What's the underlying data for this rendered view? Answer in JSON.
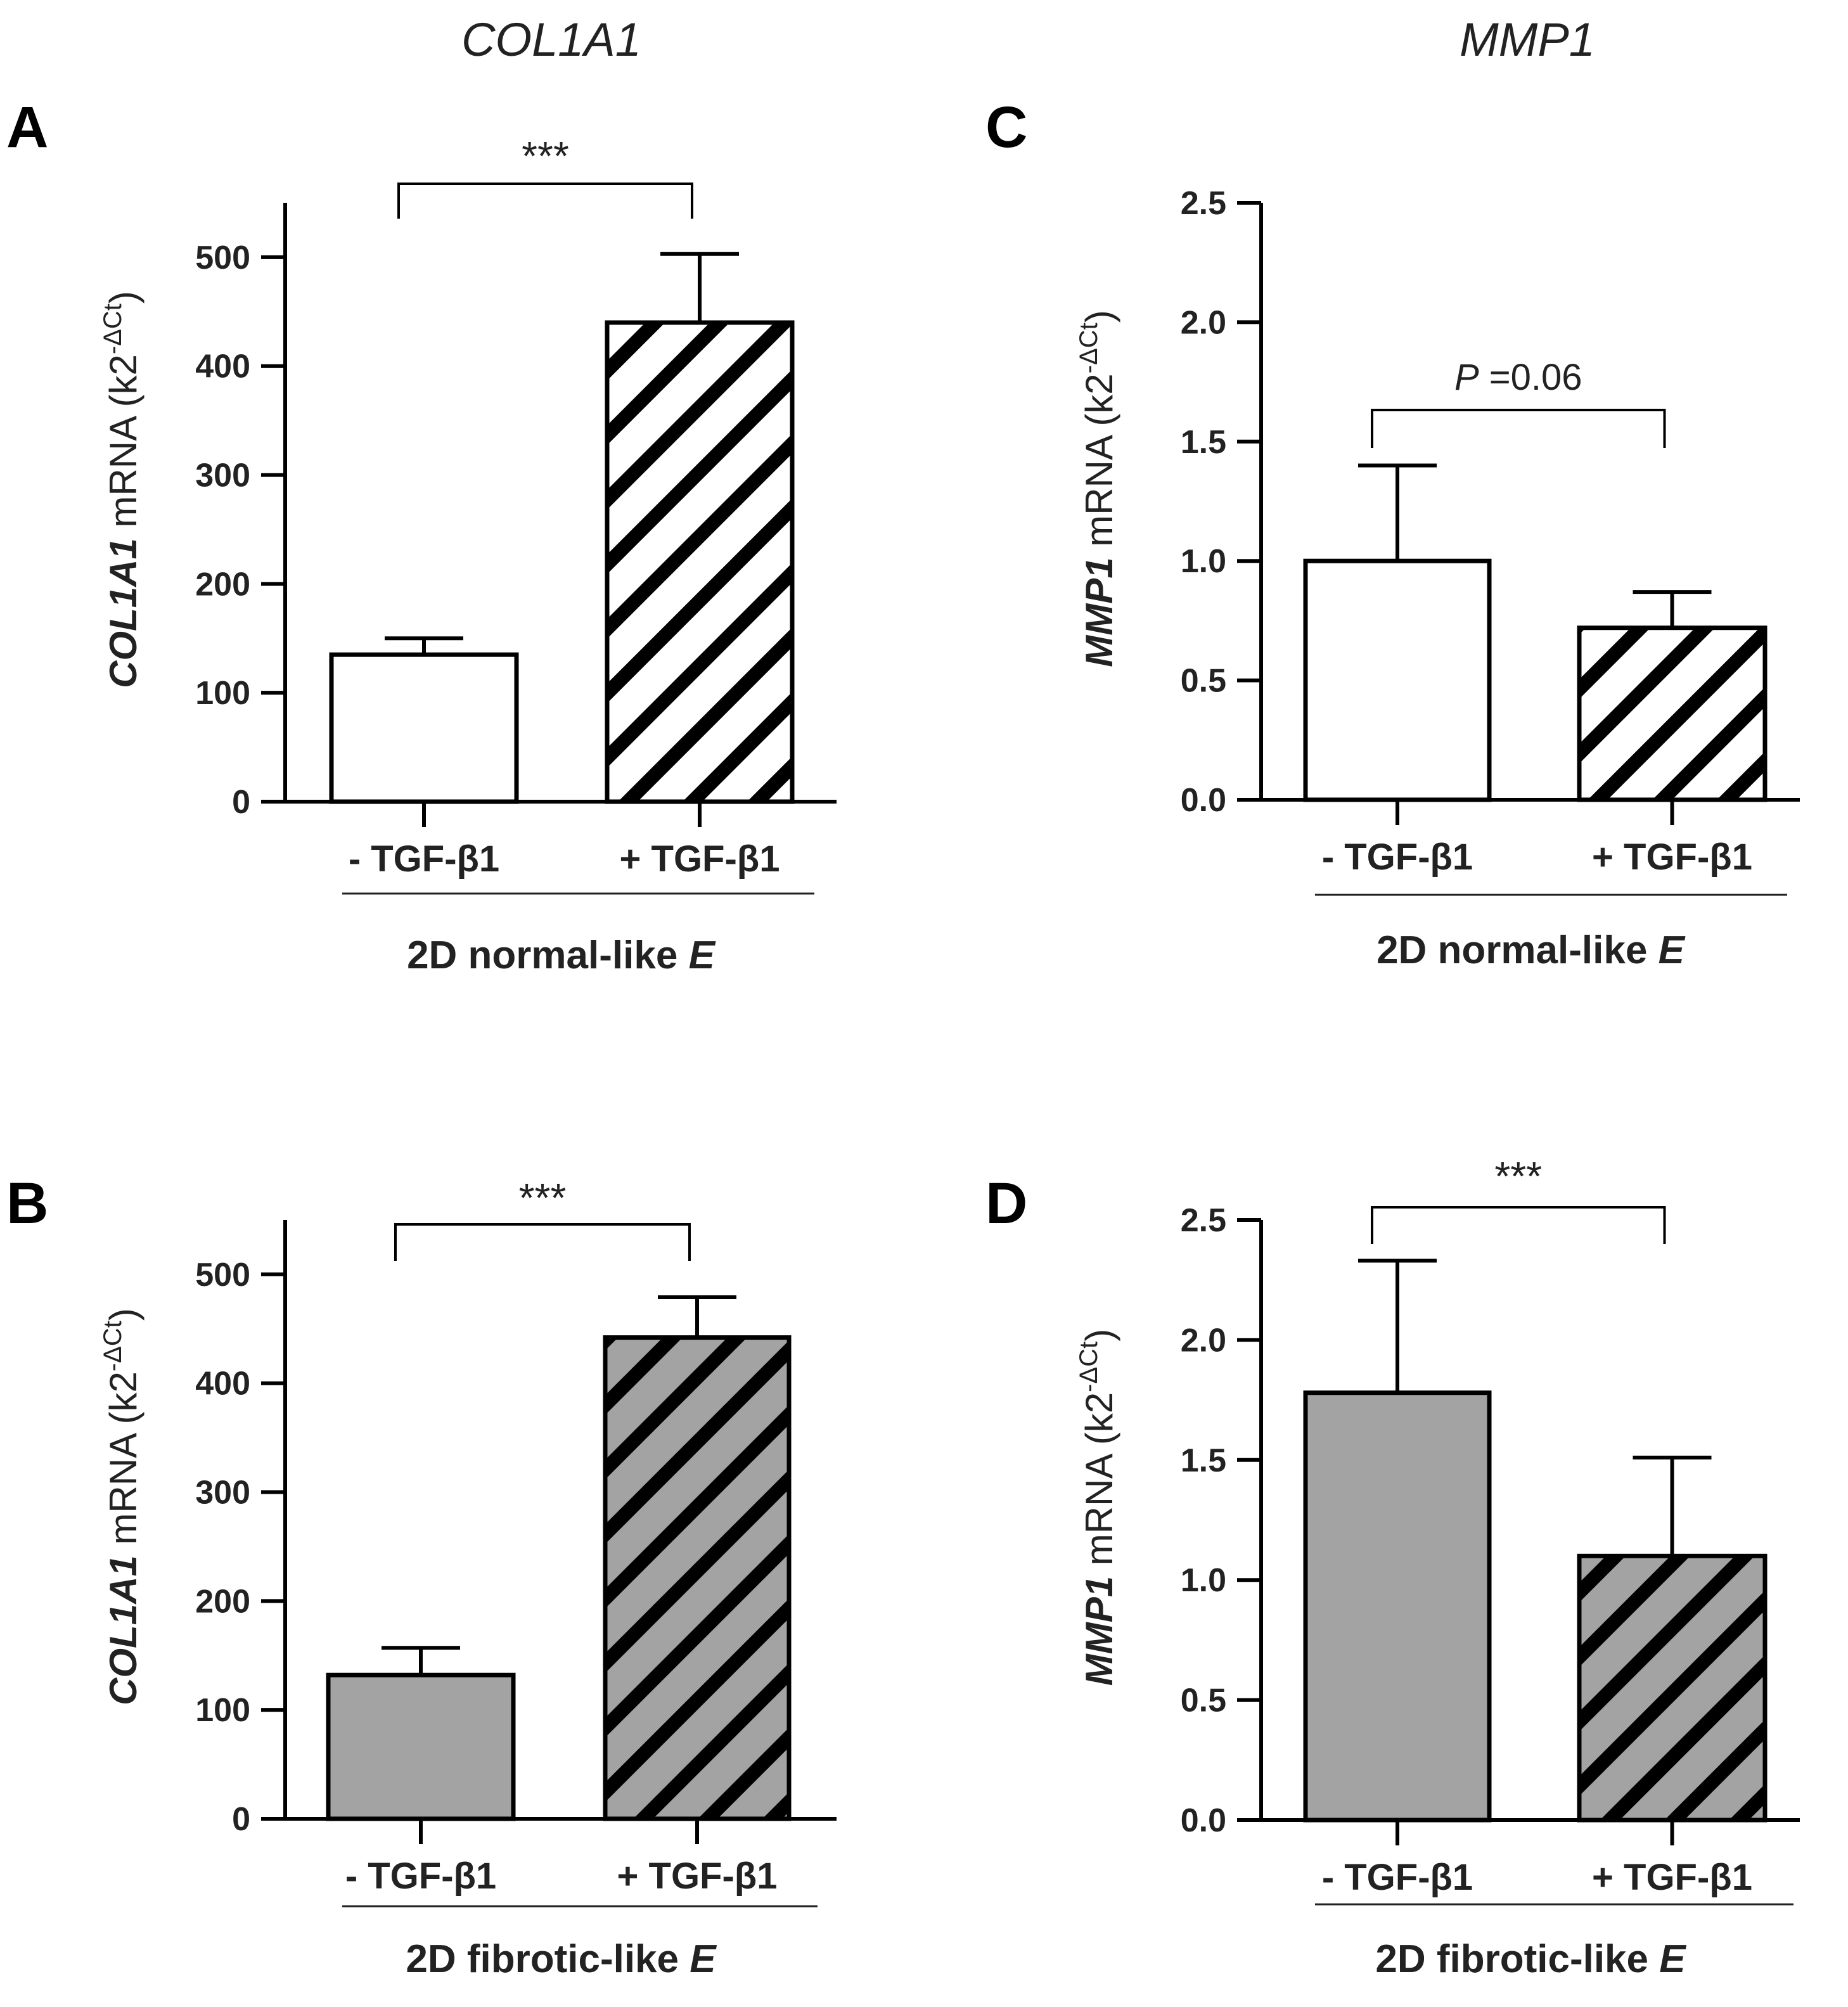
{
  "column_titles": [
    "COL1A1",
    "MMP1"
  ],
  "colors": {
    "bar_white": "#ffffff",
    "bar_gray": "#a3a3a3",
    "stroke": "#000000",
    "text": "#222222"
  },
  "chart_data": [
    {
      "panel": "A",
      "type": "bar",
      "gene": "COL1A1",
      "ylabel_italic": "COL1A1",
      "ylabel_rest": " mRNA (k2",
      "ylabel_sup": "-ΔCt",
      "ylabel_close": ")",
      "categories": [
        "- TGF-β1",
        "+ TGF-β1"
      ],
      "values": [
        135,
        440
      ],
      "errors": [
        15,
        63
      ],
      "fills": [
        "white",
        "white-hatched"
      ],
      "ylim": [
        0,
        550
      ],
      "yticks": [
        0,
        100,
        200,
        300,
        400,
        500
      ],
      "ytick_labels": [
        "0",
        "100",
        "200",
        "300",
        "400",
        "500"
      ],
      "xgroup_prefix": "2D normal-like ",
      "xgroup_italic": "E",
      "significance": {
        "text": "***",
        "italic_part": ""
      }
    },
    {
      "panel": "B",
      "type": "bar",
      "gene": "COL1A1",
      "ylabel_italic": "COL1A1",
      "ylabel_rest": " mRNA (k2",
      "ylabel_sup": "-ΔCt",
      "ylabel_close": ")",
      "categories": [
        "- TGF-β1",
        "+ TGF-β1"
      ],
      "values": [
        132,
        442
      ],
      "errors": [
        25,
        37
      ],
      "fills": [
        "gray",
        "gray-hatched"
      ],
      "ylim": [
        0,
        550
      ],
      "yticks": [
        0,
        100,
        200,
        300,
        400,
        500
      ],
      "ytick_labels": [
        "0",
        "100",
        "200",
        "300",
        "400",
        "500"
      ],
      "xgroup_prefix": "2D fibrotic-like ",
      "xgroup_italic": "E",
      "significance": {
        "text": "***",
        "italic_part": ""
      }
    },
    {
      "panel": "C",
      "type": "bar",
      "gene": "MMP1",
      "ylabel_italic": "MMP1",
      "ylabel_rest": " mRNA (k2",
      "ylabel_sup": "-ΔCt",
      "ylabel_close": ")",
      "categories": [
        "- TGF-β1",
        "+ TGF-β1"
      ],
      "values": [
        1.0,
        0.72
      ],
      "errors": [
        0.4,
        0.15
      ],
      "fills": [
        "white",
        "white-hatched"
      ],
      "ylim": [
        0,
        2.5
      ],
      "yticks": [
        0,
        0.5,
        1.0,
        1.5,
        2.0,
        2.5
      ],
      "ytick_labels": [
        "0.0",
        "0.5",
        "1.0",
        "1.5",
        "2.0",
        "2.5"
      ],
      "xgroup_prefix": "2D normal-like ",
      "xgroup_italic": "E",
      "significance": {
        "text": " =0.06",
        "italic_part": "P"
      }
    },
    {
      "panel": "D",
      "type": "bar",
      "gene": "MMP1",
      "ylabel_italic": "MMP1",
      "ylabel_rest": " mRNA (k2",
      "ylabel_sup": "-ΔCt",
      "ylabel_close": ")",
      "categories": [
        "- TGF-β1",
        "+ TGF-β1"
      ],
      "values": [
        1.78,
        1.1
      ],
      "errors": [
        0.55,
        0.41
      ],
      "fills": [
        "gray",
        "gray-hatched"
      ],
      "ylim": [
        0,
        2.5
      ],
      "yticks": [
        0,
        0.5,
        1.0,
        1.5,
        2.0,
        2.5
      ],
      "ytick_labels": [
        "0.0",
        "0.5",
        "1.0",
        "1.5",
        "2.0",
        "2.5"
      ],
      "xgroup_prefix": "2D fibrotic-like ",
      "xgroup_italic": "E",
      "significance": {
        "text": "***",
        "italic_part": ""
      }
    }
  ]
}
